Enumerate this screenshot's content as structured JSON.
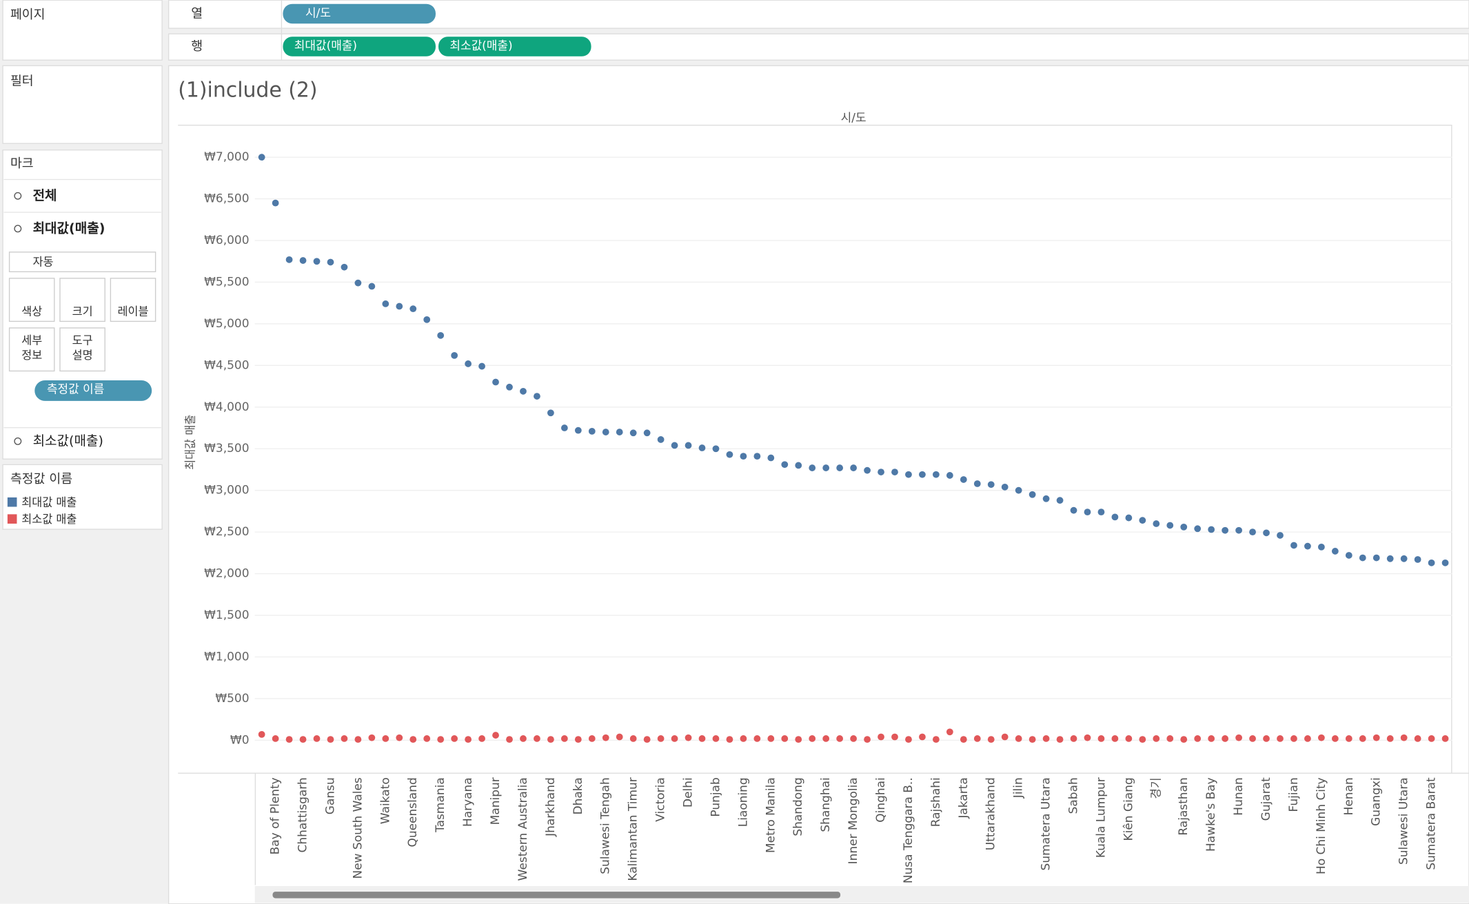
{
  "ui": {
    "pages": "페이지",
    "filters": "필터",
    "marks": "마크",
    "marks_all": "전체",
    "marks_max": "최대값(매출)",
    "marks_min": "최소값(매출)",
    "mark_type": "자동",
    "buttons": [
      [
        "색상"
      ],
      [
        "크기"
      ],
      [
        "레이블"
      ],
      [
        "세부",
        "정보"
      ],
      [
        "도구",
        "설명"
      ]
    ],
    "measure_pill": "측정값 이름",
    "columns_label": "열",
    "rows_label": "행",
    "column_pill": "시/도",
    "row_pills": [
      "최대값(매출)",
      "최소값(매출)"
    ]
  },
  "chart_data": {
    "type": "dot",
    "title": "(1)include (2)",
    "column_header": "시/도",
    "y_label": "최대값 매출",
    "legend_title": "측정값 이름",
    "categories": [
      null,
      "Bay of Plenty",
      null,
      "Chhattisgarh",
      null,
      "Gansu",
      null,
      "New South Wales",
      null,
      "Waikato",
      null,
      "Queensland",
      null,
      "Tasmania",
      null,
      "Haryana",
      null,
      "Manipur",
      null,
      "Western Australia",
      null,
      "Jharkhand",
      null,
      "Dhaka",
      null,
      "Sulawesi Tengah",
      null,
      "Kalimantan Timur",
      null,
      "Victoria",
      null,
      "Delhi",
      null,
      "Punjab",
      null,
      "Liaoning",
      null,
      "Metro Manila",
      null,
      "Shandong",
      null,
      "Shanghai",
      null,
      "Inner Mongolia",
      null,
      "Qinghai",
      null,
      "Nusa Tenggara B..",
      null,
      "Rajshahi",
      null,
      "Jakarta",
      null,
      "Uttarakhand",
      null,
      "Jilin",
      null,
      "Sumatera Utara",
      null,
      "Sabah",
      null,
      "Kuala Lumpur",
      null,
      "Kiên Giang",
      null,
      "경기",
      null,
      "Rajasthan",
      null,
      "Hawke's Bay",
      null,
      "Hunan",
      null,
      "Gujarat",
      null,
      "Fujian",
      null,
      "Ho Chi Minh City",
      null,
      "Henan",
      null,
      "Guangxi",
      null,
      "Sulawesi Utara",
      null,
      "Sumatera Barat",
      null
    ],
    "series": [
      {
        "name": "최대값 매출",
        "color": "#4e79a7",
        "values": [
          7000,
          6450,
          5770,
          5760,
          5750,
          5740,
          5680,
          5490,
          5450,
          5240,
          5210,
          5180,
          5050,
          4860,
          4620,
          4520,
          4490,
          4300,
          4240,
          4190,
          4130,
          3930,
          3750,
          3720,
          3710,
          3700,
          3700,
          3690,
          3690,
          3610,
          3540,
          3540,
          3510,
          3500,
          3430,
          3410,
          3410,
          3390,
          3310,
          3300,
          3270,
          3270,
          3270,
          3270,
          3240,
          3220,
          3220,
          3190,
          3190,
          3190,
          3180,
          3130,
          3080,
          3070,
          3040,
          3000,
          2950,
          2900,
          2880,
          2760,
          2740,
          2740,
          2680,
          2670,
          2640,
          2600,
          2580,
          2560,
          2540,
          2530,
          2520,
          2520,
          2500,
          2490,
          2460,
          2340,
          2330,
          2320,
          2270,
          2220,
          2190,
          2190,
          2180,
          2180,
          2170,
          2130,
          2130
        ]
      },
      {
        "name": "최소값 매출",
        "color": "#e15759",
        "values": [
          70,
          20,
          10,
          10,
          20,
          10,
          20,
          10,
          30,
          20,
          30,
          10,
          20,
          10,
          20,
          10,
          20,
          60,
          10,
          20,
          20,
          10,
          20,
          10,
          20,
          30,
          40,
          20,
          10,
          20,
          20,
          30,
          20,
          20,
          10,
          20,
          20,
          20,
          20,
          10,
          20,
          20,
          20,
          20,
          10,
          40,
          40,
          10,
          40,
          10,
          100,
          10,
          20,
          10,
          40,
          20,
          10,
          20,
          10,
          20,
          30,
          20,
          20,
          20,
          10,
          20,
          20,
          10,
          20,
          20,
          20,
          30,
          20,
          20,
          20,
          20,
          20,
          30,
          20,
          20,
          20,
          30,
          20,
          30,
          20,
          20,
          20
        ]
      }
    ],
    "ylim": [
      -390,
      7390
    ],
    "yticks": [
      {
        "value": 0,
        "label": "₩0"
      },
      {
        "value": 500,
        "label": "₩500"
      },
      {
        "value": 1000,
        "label": "₩1,000"
      },
      {
        "value": 1500,
        "label": "₩1,500"
      },
      {
        "value": 2000,
        "label": "₩2,000"
      },
      {
        "value": 2500,
        "label": "₩2,500"
      },
      {
        "value": 3000,
        "label": "₩3,000"
      },
      {
        "value": 3500,
        "label": "₩3,500"
      },
      {
        "value": 4000,
        "label": "₩4,000"
      },
      {
        "value": 4500,
        "label": "₩4,500"
      },
      {
        "value": 5000,
        "label": "₩5,000"
      },
      {
        "value": 5500,
        "label": "₩5,500"
      },
      {
        "value": 6000,
        "label": "₩6,000"
      },
      {
        "value": 6500,
        "label": "₩6,500"
      },
      {
        "value": 7000,
        "label": "₩7,000"
      }
    ],
    "grid": true
  }
}
